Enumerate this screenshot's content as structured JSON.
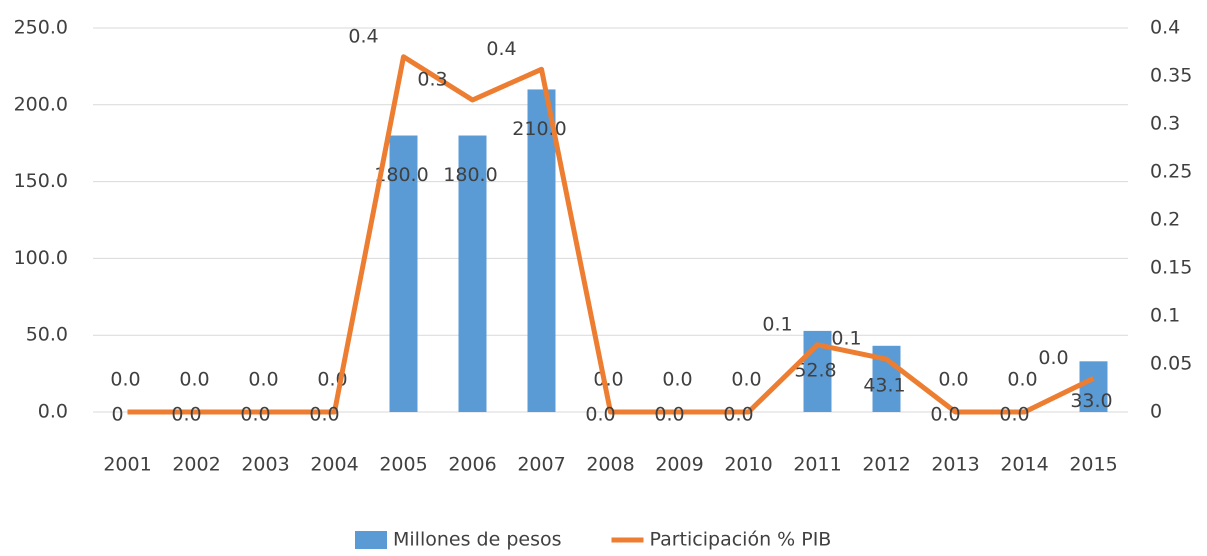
{
  "chart_data": {
    "type": "bar-line",
    "categories": [
      "2001",
      "2002",
      "2003",
      "2004",
      "2005",
      "2006",
      "2007",
      "2008",
      "2009",
      "2010",
      "2011",
      "2012",
      "2013",
      "2014",
      "2015"
    ],
    "series": [
      {
        "name": "Millones de pesos",
        "color": "#5b9bd5",
        "type": "bar",
        "values": [
          0,
          0,
          0,
          0,
          180,
          180,
          210,
          0,
          0,
          0,
          52.8,
          43.1,
          0,
          0,
          33
        ],
        "value_labels": [
          "0.0",
          "0.0",
          "0.0",
          "0.0",
          "180.0",
          "180.0",
          "210.0",
          "0.0",
          "0.0",
          "0.0",
          "52.8",
          "43.1",
          "0.0",
          "0.0",
          "33.0"
        ]
      },
      {
        "name": "Participación % PIB",
        "color": "#ed7d31",
        "type": "line",
        "axis": "y2",
        "values": [
          0,
          0,
          0,
          0,
          0.37,
          0.325,
          0.357,
          0,
          0,
          0,
          0.07,
          0.055,
          0,
          0,
          0.035
        ],
        "value_labels": [
          "0",
          "0.0",
          "0.0",
          "0.0",
          "0.4",
          "0.3",
          "0.4",
          "0.0",
          "0.0",
          "0.0",
          "0.1",
          "0.1",
          "0.0",
          "0.0",
          "0.0"
        ]
      }
    ],
    "ylim": [
      0,
      250
    ],
    "yticks": [
      {
        "value": 0,
        "label": "0.0"
      },
      {
        "value": 50,
        "label": "50.0"
      },
      {
        "value": 100,
        "label": "100.0"
      },
      {
        "value": 150,
        "label": "150.0"
      },
      {
        "value": 200,
        "label": "200.0"
      },
      {
        "value": 250,
        "label": "250.0"
      }
    ],
    "y2lim": [
      0,
      0.4
    ],
    "y2ticks": [
      0,
      0.05,
      0.1,
      0.15,
      0.2,
      0.25,
      0.3,
      0.35,
      0.4
    ],
    "grid": true,
    "legend": "bottom"
  }
}
